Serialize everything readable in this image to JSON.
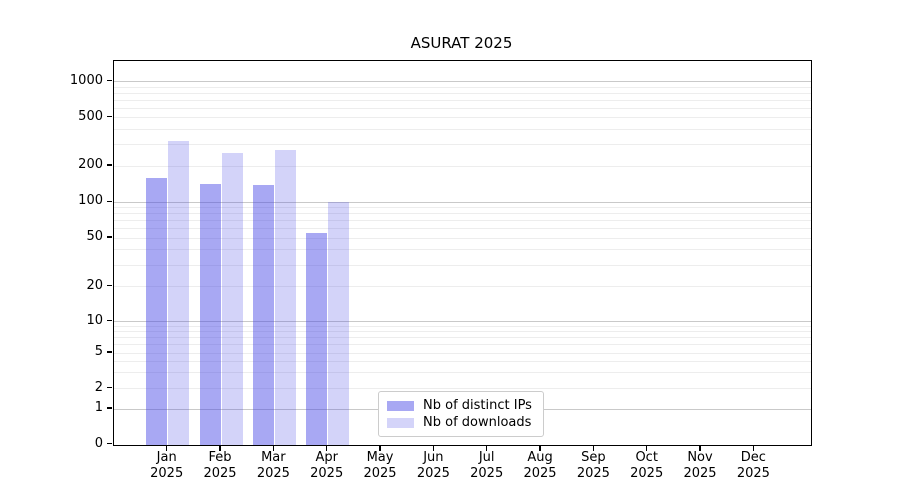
{
  "chart_data": {
    "type": "bar",
    "title": "ASURAT 2025",
    "categories": [
      "Jan",
      "Feb",
      "Mar",
      "Apr",
      "May",
      "Jun",
      "Jul",
      "Aug",
      "Sep",
      "Oct",
      "Nov",
      "Dec"
    ],
    "category_year": "2025",
    "series": [
      {
        "name": "Nb of distinct IPs",
        "legend_color": "#a8a8f3",
        "fill": "rgba(70,70,230,0.47)",
        "values": [
          160,
          143,
          138,
          55,
          0,
          0,
          0,
          0,
          0,
          0,
          0,
          0
        ]
      },
      {
        "name": "Nb of downloads",
        "legend_color": "#d4d4f9",
        "fill": "rgba(70,70,230,0.235)",
        "values": [
          320,
          255,
          270,
          100,
          0,
          0,
          0,
          0,
          0,
          0,
          0,
          0
        ]
      }
    ],
    "yscale": "symlog",
    "ylim": [
      0,
      1480
    ],
    "y_tick_values": [
      0,
      1,
      2,
      5,
      10,
      20,
      50,
      100,
      200,
      500,
      1000
    ],
    "y_tick_labels": [
      "0",
      "1",
      "2",
      "5",
      "10",
      "20",
      "50",
      "100",
      "200",
      "500",
      "1000"
    ],
    "grid": true,
    "grid_major_values": [
      1,
      10,
      100,
      1000
    ],
    "grid_minor_values": [
      2,
      3,
      4,
      5,
      6,
      7,
      8,
      9,
      20,
      30,
      40,
      50,
      60,
      70,
      80,
      90,
      200,
      300,
      400,
      500,
      600,
      700,
      800,
      900
    ],
    "legend_position": "lower center-left",
    "colors": {
      "grid_major": "#c9c9c9",
      "grid_minor": "#ededed",
      "spine": "#000000",
      "background": "#ffffff"
    }
  }
}
